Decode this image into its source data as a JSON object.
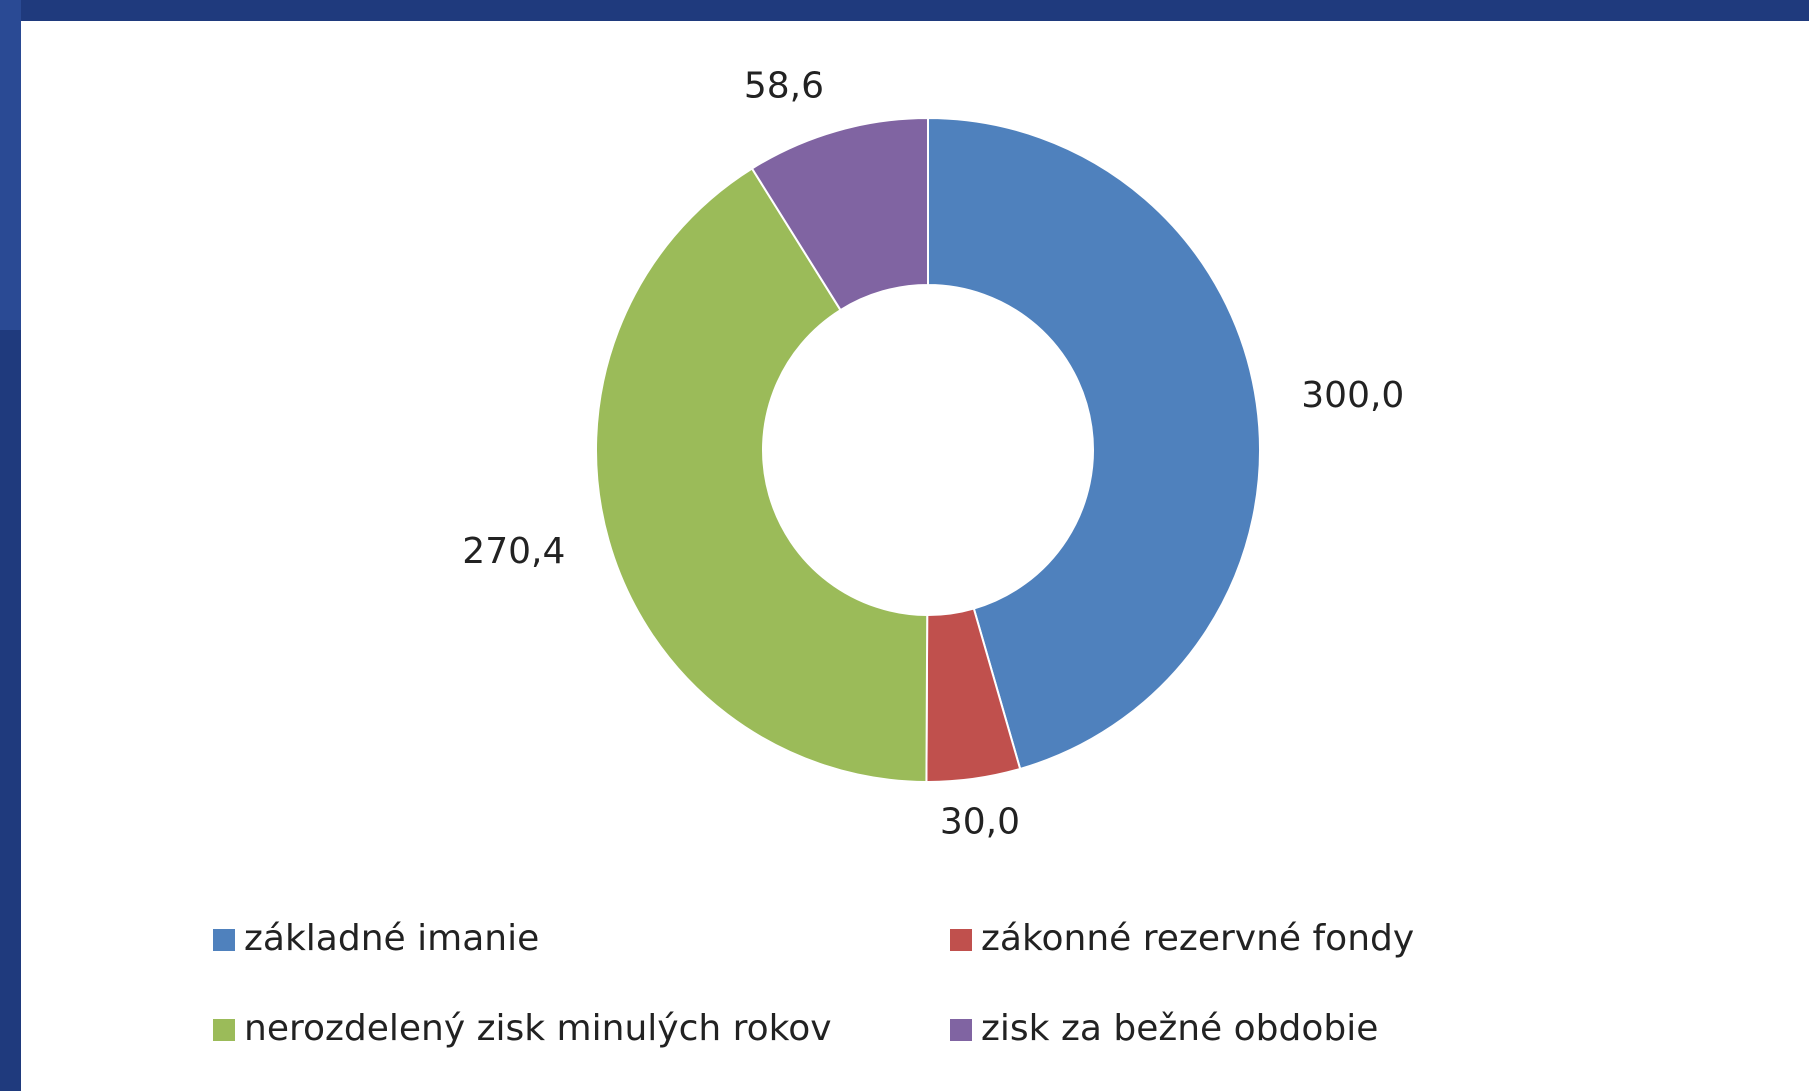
{
  "chart_data": {
    "type": "donut",
    "categories": [
      "základné imanie",
      "zákonné rezervné fondy",
      "nerozdelený zisk minulých rokov",
      "zisk za bežné obdobie"
    ],
    "values": [
      300.0,
      30.0,
      270.4,
      58.6
    ],
    "value_labels": [
      "300,0",
      "30,0",
      "270,4",
      "58,6"
    ],
    "colors": [
      "#4f81bd",
      "#c0504d",
      "#9bbb59",
      "#8064a2"
    ],
    "legend": "bottom"
  }
}
